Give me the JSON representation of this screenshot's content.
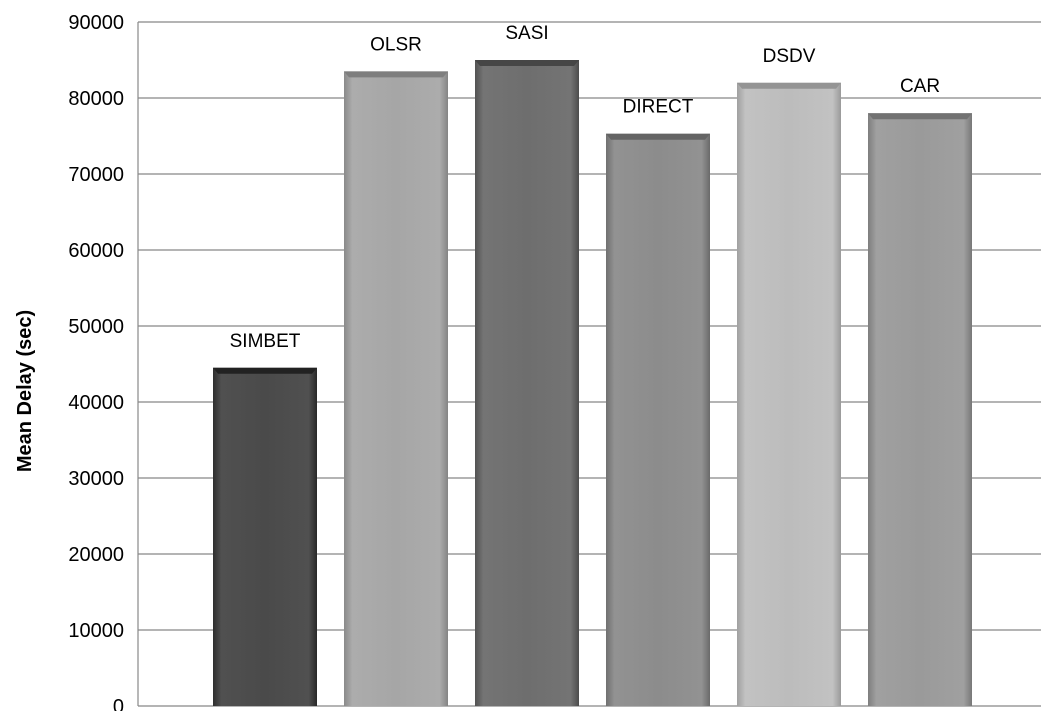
{
  "chart_data": {
    "type": "bar",
    "title": "",
    "xlabel": "",
    "ylabel": "Mean Delay (sec)",
    "ylim": [
      0,
      90000
    ],
    "yticks": [
      0,
      10000,
      20000,
      30000,
      40000,
      50000,
      60000,
      70000,
      80000,
      90000
    ],
    "grid": true,
    "legend": "none",
    "categories": [
      "SIMBET",
      "OLSR",
      "SASI",
      "DIRECT",
      "DSDV",
      "CAR"
    ],
    "values": [
      44500,
      83500,
      85000,
      75300,
      82000,
      78000
    ],
    "colors": [
      "#4a4a4a",
      "#a6a6a6",
      "#6e6e6e",
      "#8c8c8c",
      "#bcbcbc",
      "#9a9a9a"
    ]
  }
}
